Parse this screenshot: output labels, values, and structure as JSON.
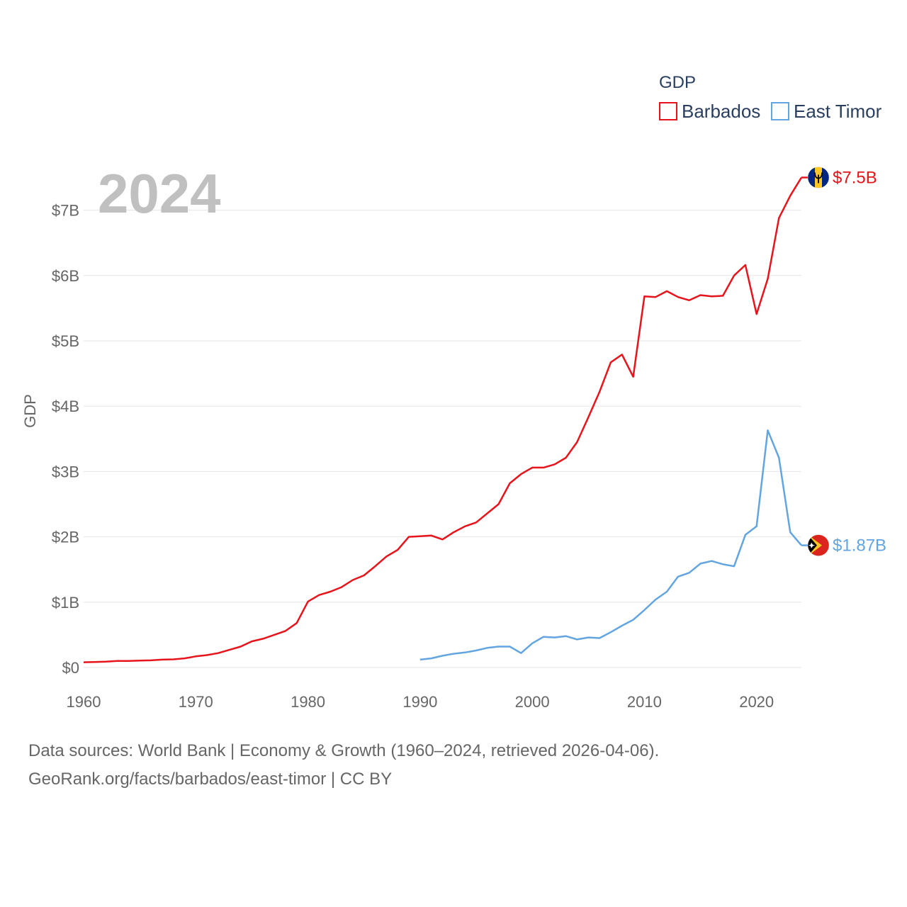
{
  "chart_data": {
    "type": "line",
    "title": "",
    "year_label": "2024",
    "ylabel": "GDP",
    "xlabel": "",
    "xlim": [
      1960,
      2024
    ],
    "ylim": [
      0,
      7.5
    ],
    "x_ticks": [
      1960,
      1970,
      1980,
      1990,
      2000,
      2010,
      2020
    ],
    "x_tick_labels": [
      "1960",
      "1970",
      "1980",
      "1990",
      "2000",
      "2010",
      "2020"
    ],
    "y_ticks": [
      0,
      1,
      2,
      3,
      4,
      5,
      6,
      7
    ],
    "y_tick_labels": [
      "$0",
      "$1B",
      "$2B",
      "$3B",
      "$4B",
      "$5B",
      "$6B",
      "$7B"
    ],
    "legend_title": "GDP",
    "legend_position": "top-right",
    "series": [
      {
        "name": "Barbados",
        "color": "#e8141c",
        "end_label": "$7.5B",
        "flag": "barbados-flag",
        "points": [
          [
            1960,
            0.08
          ],
          [
            1961,
            0.085
          ],
          [
            1962,
            0.09
          ],
          [
            1963,
            0.1
          ],
          [
            1964,
            0.1
          ],
          [
            1965,
            0.105
          ],
          [
            1966,
            0.11
          ],
          [
            1967,
            0.12
          ],
          [
            1968,
            0.125
          ],
          [
            1969,
            0.14
          ],
          [
            1970,
            0.17
          ],
          [
            1971,
            0.19
          ],
          [
            1972,
            0.22
          ],
          [
            1973,
            0.27
          ],
          [
            1974,
            0.32
          ],
          [
            1975,
            0.4
          ],
          [
            1976,
            0.44
          ],
          [
            1977,
            0.5
          ],
          [
            1978,
            0.56
          ],
          [
            1979,
            0.68
          ],
          [
            1980,
            1.01
          ],
          [
            1981,
            1.11
          ],
          [
            1982,
            1.16
          ],
          [
            1983,
            1.23
          ],
          [
            1984,
            1.34
          ],
          [
            1985,
            1.41
          ],
          [
            1986,
            1.55
          ],
          [
            1987,
            1.7
          ],
          [
            1988,
            1.8
          ],
          [
            1989,
            2.0
          ],
          [
            1990,
            2.01
          ],
          [
            1991,
            2.02
          ],
          [
            1992,
            1.96
          ],
          [
            1993,
            2.07
          ],
          [
            1994,
            2.16
          ],
          [
            1995,
            2.22
          ],
          [
            1996,
            2.36
          ],
          [
            1997,
            2.5
          ],
          [
            1998,
            2.82
          ],
          [
            1999,
            2.96
          ],
          [
            2000,
            3.06
          ],
          [
            2001,
            3.06
          ],
          [
            2002,
            3.11
          ],
          [
            2003,
            3.21
          ],
          [
            2004,
            3.45
          ],
          [
            2005,
            3.83
          ],
          [
            2006,
            4.22
          ],
          [
            2007,
            4.67
          ],
          [
            2008,
            4.79
          ],
          [
            2009,
            4.45
          ],
          [
            2010,
            5.68
          ],
          [
            2011,
            5.67
          ],
          [
            2012,
            5.76
          ],
          [
            2013,
            5.67
          ],
          [
            2014,
            5.62
          ],
          [
            2015,
            5.7
          ],
          [
            2016,
            5.68
          ],
          [
            2017,
            5.69
          ],
          [
            2018,
            6.0
          ],
          [
            2019,
            6.16
          ],
          [
            2020,
            5.41
          ],
          [
            2021,
            5.95
          ],
          [
            2022,
            6.88
          ],
          [
            2023,
            7.22
          ],
          [
            2024,
            7.5
          ]
        ]
      },
      {
        "name": "East Timor",
        "color": "#63a5e0",
        "end_label": "$1.87B",
        "flag": "east-timor-flag",
        "points": [
          [
            1990,
            0.12
          ],
          [
            1991,
            0.14
          ],
          [
            1992,
            0.18
          ],
          [
            1993,
            0.21
          ],
          [
            1994,
            0.23
          ],
          [
            1995,
            0.26
          ],
          [
            1996,
            0.3
          ],
          [
            1997,
            0.32
          ],
          [
            1998,
            0.32
          ],
          [
            1999,
            0.22
          ],
          [
            2000,
            0.37
          ],
          [
            2001,
            0.47
          ],
          [
            2002,
            0.46
          ],
          [
            2003,
            0.48
          ],
          [
            2004,
            0.43
          ],
          [
            2005,
            0.46
          ],
          [
            2006,
            0.45
          ],
          [
            2007,
            0.54
          ],
          [
            2008,
            0.64
          ],
          [
            2009,
            0.73
          ],
          [
            2010,
            0.88
          ],
          [
            2011,
            1.04
          ],
          [
            2012,
            1.16
          ],
          [
            2013,
            1.39
          ],
          [
            2014,
            1.45
          ],
          [
            2015,
            1.59
          ],
          [
            2016,
            1.63
          ],
          [
            2017,
            1.58
          ],
          [
            2018,
            1.55
          ],
          [
            2019,
            2.03
          ],
          [
            2020,
            2.16
          ],
          [
            2021,
            3.63
          ],
          [
            2022,
            3.21
          ],
          [
            2023,
            2.07
          ],
          [
            2024,
            1.87
          ]
        ]
      }
    ]
  },
  "footer": {
    "source_line1": "Data sources: World Bank | Economy & Growth (1960–2024, retrieved 2026-04-06).",
    "source_line2": "GeoRank.org/facts/barbados/east-timor | CC BY"
  }
}
